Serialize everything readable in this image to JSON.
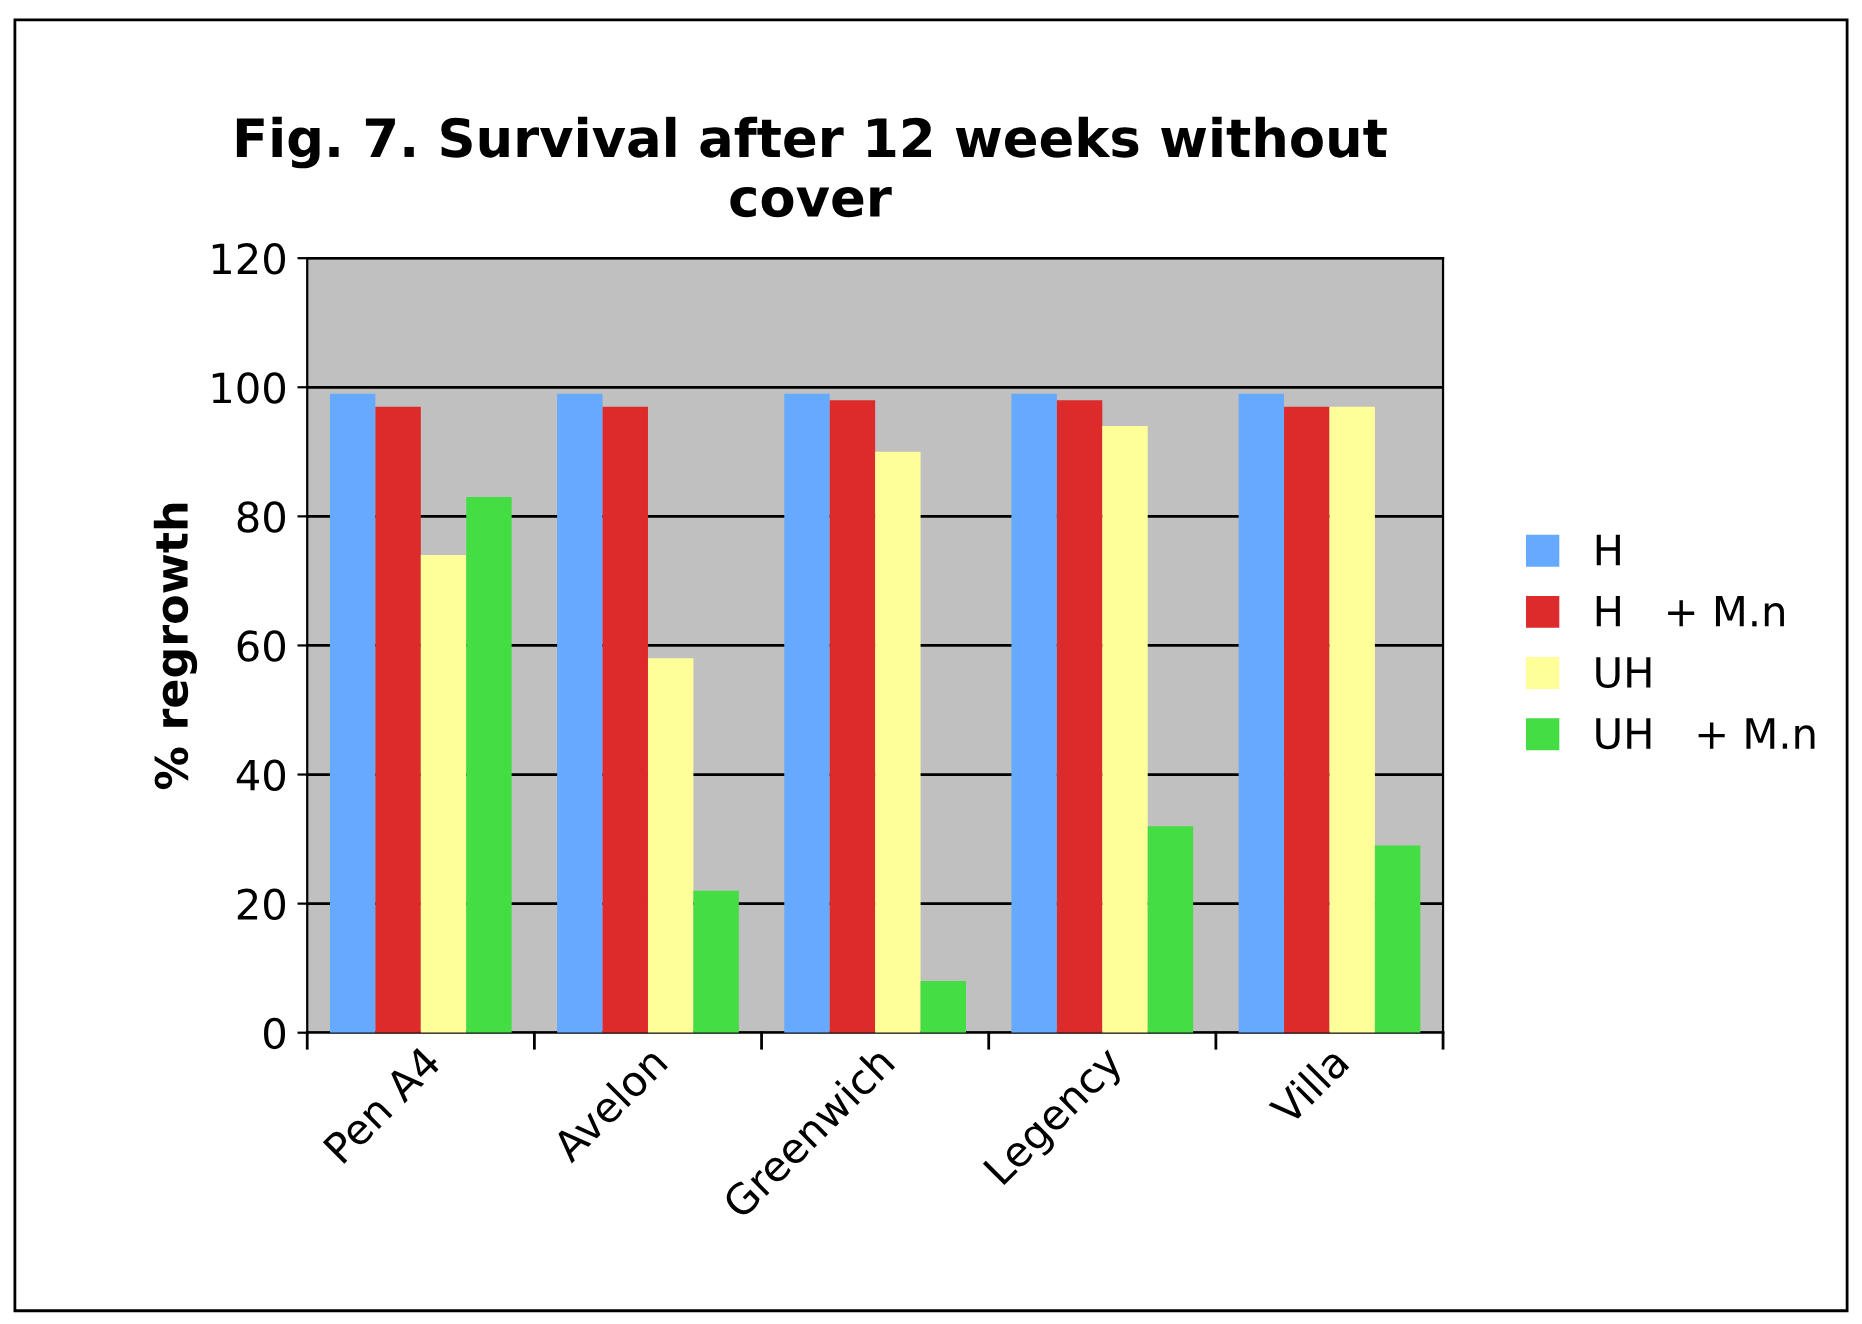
{
  "chart_data": {
    "type": "bar",
    "title": "Fig. 7. Survival after 12 weeks without\ncover",
    "ylabel": "% regrowth",
    "categories": [
      "Pen A4",
      "Avelon",
      "Greenwich",
      "Legency",
      "Villa"
    ],
    "series": [
      {
        "name": "H",
        "color": "#66aaff",
        "values": [
          99,
          99,
          99,
          99,
          99
        ]
      },
      {
        "name": "H   + M.n",
        "color": "#dd2a2a",
        "values": [
          97,
          97,
          98,
          98,
          97
        ]
      },
      {
        "name": "UH",
        "color": "#ffff99",
        "values": [
          74,
          58,
          90,
          94,
          97
        ]
      },
      {
        "name": "UH   + M.n",
        "color": "#44dd44",
        "values": [
          83,
          22,
          8,
          32,
          29
        ]
      }
    ],
    "ylim": [
      0,
      120
    ],
    "yticks": [
      0,
      20,
      40,
      60,
      80,
      100,
      120
    ],
    "grid": "y",
    "legend": "right"
  }
}
